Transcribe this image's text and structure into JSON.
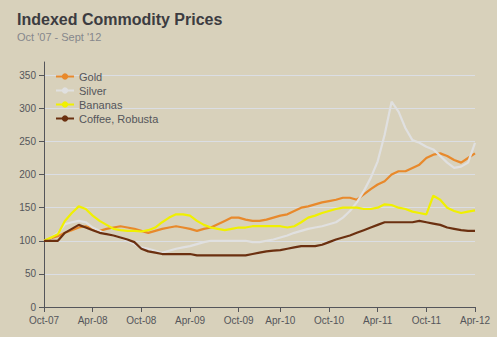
{
  "chart_data": {
    "type": "line",
    "title": "Indexed Commodity Prices",
    "subtitle": "Oct '07 - Sept '12",
    "categories": [
      "Oct-07",
      null,
      null,
      null,
      null,
      null,
      null,
      "Apr-08",
      null,
      null,
      null,
      null,
      null,
      null,
      "Oct-08",
      null,
      null,
      null,
      null,
      null,
      null,
      "Apr-09",
      null,
      null,
      null,
      null,
      null,
      null,
      "Oct-09",
      null,
      null,
      null,
      null,
      null,
      "Apr-10",
      null,
      null,
      null,
      null,
      null,
      null,
      "Oct-10",
      null,
      null,
      null,
      null,
      null,
      null,
      "Apr-11",
      null,
      null,
      null,
      null,
      null,
      null,
      "Oct-11",
      null,
      null,
      null,
      null,
      null,
      null,
      "Apr-12"
    ],
    "series": [
      {
        "name": "Gold",
        "color": "#e8892b",
        "values": [
          100,
          104,
          107,
          112,
          116,
          120,
          122,
          118,
          115,
          118,
          120,
          122,
          120,
          118,
          115,
          112,
          115,
          118,
          120,
          122,
          120,
          118,
          115,
          118,
          120,
          125,
          130,
          135,
          135,
          132,
          130,
          130,
          132,
          135,
          138,
          140,
          145,
          150,
          152,
          155,
          158,
          160,
          162,
          165,
          165,
          162,
          170,
          178,
          185,
          190,
          200,
          205,
          205,
          210,
          215,
          225,
          230,
          232,
          228,
          222,
          218,
          225,
          232
        ]
      },
      {
        "name": "Silver",
        "color": "#e0e0e0",
        "values": [
          100,
          105,
          112,
          125,
          128,
          130,
          128,
          120,
          115,
          110,
          108,
          105,
          100,
          95,
          90,
          88,
          85,
          82,
          85,
          88,
          90,
          92,
          95,
          98,
          100,
          100,
          100,
          100,
          100,
          100,
          98,
          98,
          100,
          102,
          105,
          108,
          112,
          115,
          118,
          120,
          122,
          125,
          128,
          135,
          145,
          158,
          175,
          195,
          220,
          260,
          310,
          295,
          270,
          252,
          248,
          242,
          238,
          228,
          218,
          210,
          212,
          218,
          248
        ]
      },
      {
        "name": "Bananas",
        "color": "#f0f000",
        "values": [
          100,
          105,
          110,
          130,
          142,
          152,
          148,
          138,
          130,
          124,
          118,
          116,
          115,
          115,
          114,
          116,
          120,
          128,
          135,
          140,
          140,
          138,
          130,
          124,
          120,
          118,
          116,
          118,
          120,
          120,
          122,
          122,
          122,
          122,
          122,
          120,
          122,
          128,
          135,
          138,
          142,
          145,
          148,
          150,
          150,
          150,
          148,
          148,
          150,
          155,
          154,
          150,
          148,
          144,
          142,
          140,
          168,
          162,
          150,
          145,
          142,
          144,
          146
        ]
      },
      {
        "name": "Coffee, Robusta",
        "color": "#6b3010",
        "values": [
          100,
          100,
          100,
          112,
          118,
          124,
          120,
          116,
          112,
          110,
          108,
          105,
          102,
          98,
          88,
          84,
          82,
          80,
          80,
          80,
          80,
          80,
          78,
          78,
          78,
          78,
          78,
          78,
          78,
          78,
          80,
          82,
          84,
          85,
          86,
          88,
          90,
          92,
          92,
          92,
          94,
          98,
          102,
          105,
          108,
          112,
          116,
          120,
          124,
          128,
          128,
          128,
          128,
          128,
          130,
          128,
          126,
          124,
          120,
          118,
          116,
          115,
          115
        ]
      }
    ],
    "ylim": [
      0,
      370
    ],
    "yticks": [
      0,
      50,
      100,
      150,
      200,
      250,
      300,
      350
    ],
    "grid": true,
    "legend": "upper left"
  }
}
